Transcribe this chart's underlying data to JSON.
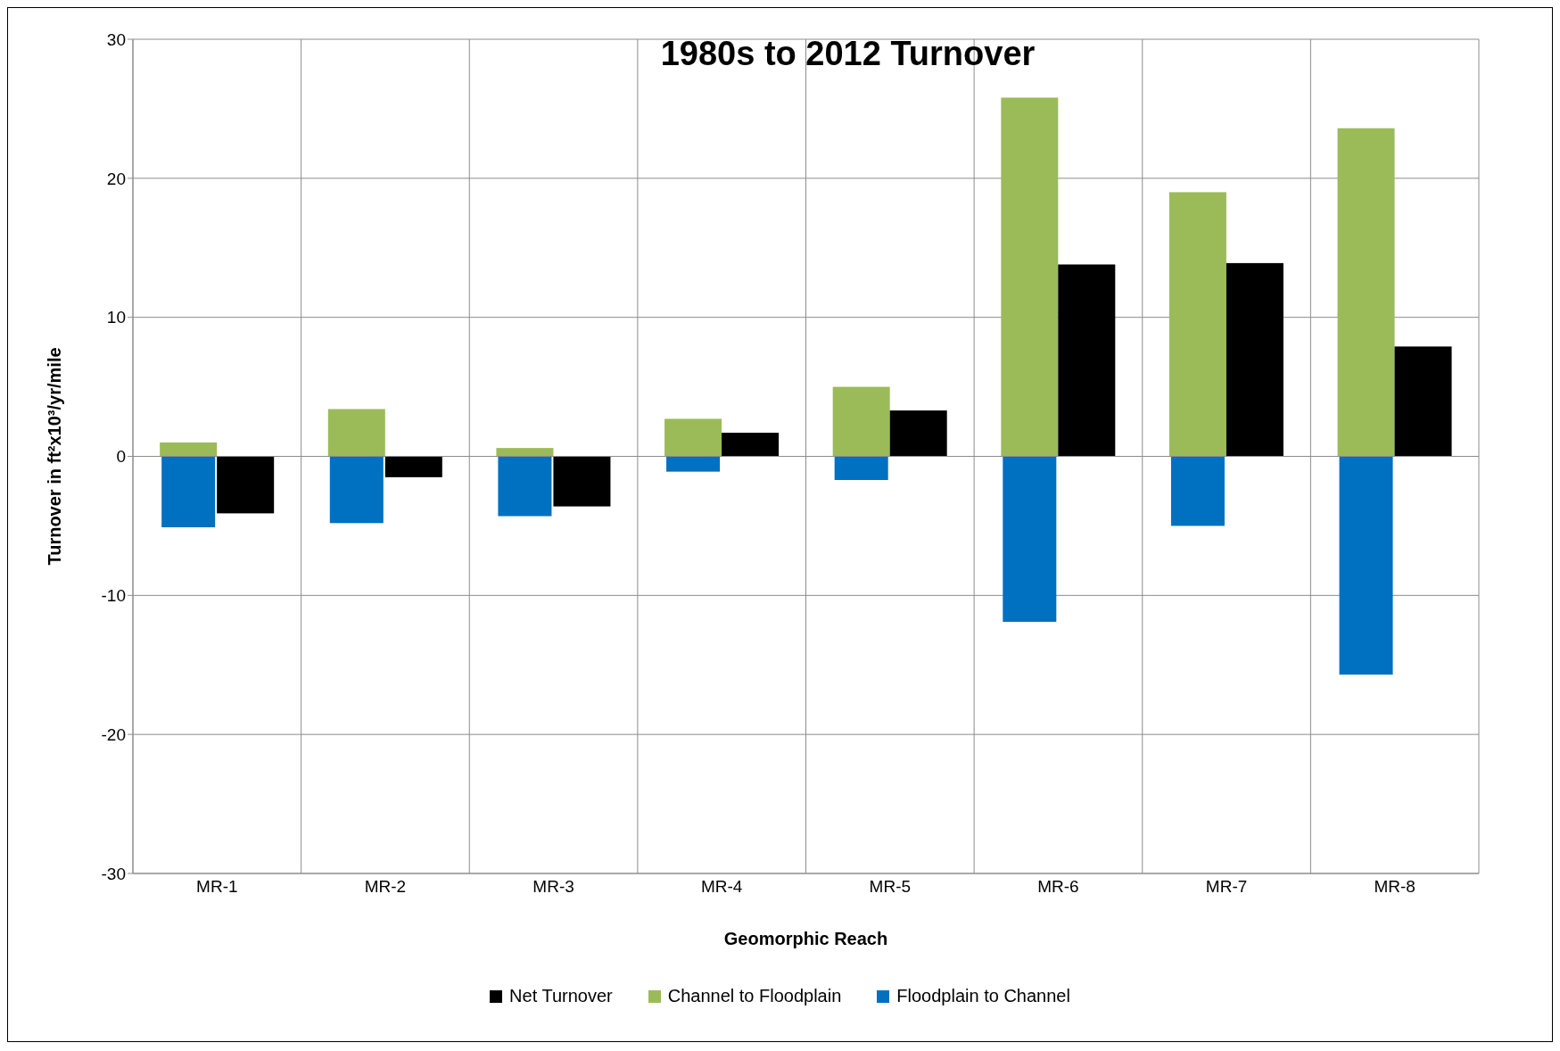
{
  "chart_data": {
    "type": "bar",
    "title": "1980s to 2012 Turnover",
    "xlabel": "Geomorphic Reach",
    "ylabel": "Turnover in ft²x10³/yr/mile",
    "categories": [
      "MR-1",
      "MR-2",
      "MR-3",
      "MR-4",
      "MR-5",
      "MR-6",
      "MR-7",
      "MR-8"
    ],
    "series": [
      {
        "name": "Net Turnover",
        "color": "#000000",
        "values": [
          -4.1,
          -1.5,
          -3.6,
          1.7,
          3.3,
          13.8,
          13.9,
          7.9
        ]
      },
      {
        "name": "Channel to Floodplain",
        "color": "#9bbb59",
        "values": [
          1.0,
          3.4,
          0.6,
          2.7,
          5.0,
          25.8,
          19.0,
          23.6
        ]
      },
      {
        "name": "Floodplain to Channel",
        "color": "#0070c0",
        "values": [
          -5.1,
          -4.8,
          -4.3,
          -1.1,
          -1.7,
          -11.9,
          -5.0,
          -15.7
        ]
      }
    ],
    "ylim": [
      -30,
      30
    ],
    "yticks": [
      -30,
      -20,
      -10,
      0,
      10,
      20,
      30
    ],
    "grid": true,
    "legend": "bottom"
  }
}
